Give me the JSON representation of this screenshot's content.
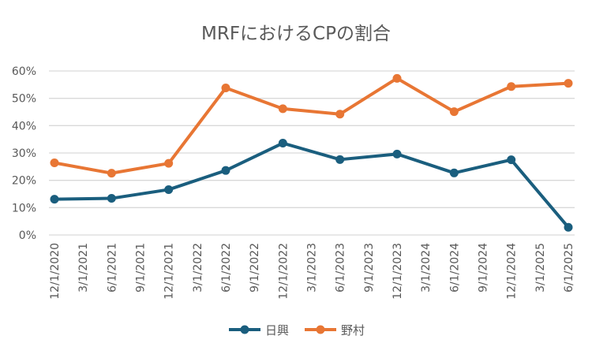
{
  "chart_data": {
    "type": "line",
    "title": "MRFにおけるCPの割合",
    "xlabel": "",
    "ylabel": "",
    "x_ticks": [
      "12/1/2020",
      "3/1/2021",
      "6/1/2021",
      "9/1/2021",
      "12/1/2021",
      "3/1/2022",
      "6/1/2022",
      "9/1/2022",
      "12/1/2022",
      "3/1/2023",
      "6/1/2023",
      "9/1/2023",
      "12/1/2023",
      "3/1/2024",
      "6/1/2024",
      "9/1/2024",
      "12/1/2024",
      "3/1/2025",
      "6/1/2025"
    ],
    "x": [
      "12/1/2020",
      "6/1/2021",
      "12/1/2021",
      "6/1/2022",
      "12/1/2022",
      "6/1/2023",
      "12/1/2023",
      "6/1/2024",
      "12/1/2024",
      "6/1/2025"
    ],
    "y_ticks": [
      "0%",
      "10%",
      "20%",
      "30%",
      "40%",
      "50%",
      "60%"
    ],
    "ylim": [
      0,
      60
    ],
    "grid": "horizontal",
    "legend": "bottom",
    "series": [
      {
        "name": "日興",
        "color": "#1a5e7e",
        "values": [
          13.1,
          13.4,
          16.6,
          23.6,
          33.6,
          27.6,
          29.6,
          22.7,
          27.5,
          2.8
        ]
      },
      {
        "name": "野村",
        "color": "#e87634",
        "values": [
          26.4,
          22.6,
          26.2,
          53.8,
          46.2,
          44.2,
          57.3,
          45.1,
          54.3,
          55.5
        ]
      }
    ]
  }
}
